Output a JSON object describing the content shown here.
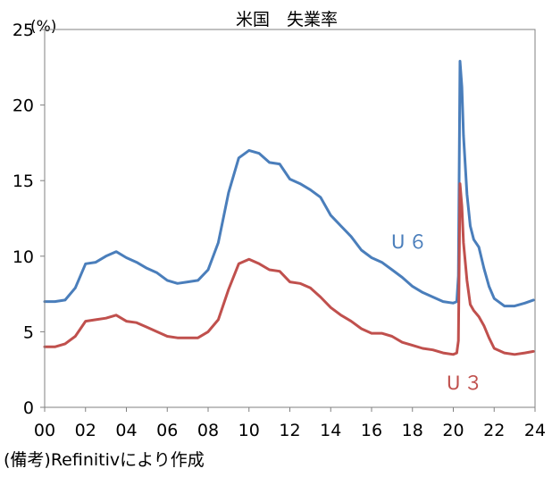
{
  "chart_data": {
    "type": "line",
    "title": "米国　失業率",
    "y_unit": "(%)",
    "source_note": "(備考)Refinitivにより作成",
    "xlim": [
      2000,
      2024
    ],
    "ylim": [
      0,
      25
    ],
    "x_ticks": [
      {
        "value": 2000,
        "label": "00"
      },
      {
        "value": 2002,
        "label": "02"
      },
      {
        "value": 2004,
        "label": "04"
      },
      {
        "value": 2006,
        "label": "06"
      },
      {
        "value": 2008,
        "label": "08"
      },
      {
        "value": 2010,
        "label": "10"
      },
      {
        "value": 2012,
        "label": "12"
      },
      {
        "value": 2014,
        "label": "14"
      },
      {
        "value": 2016,
        "label": "16"
      },
      {
        "value": 2018,
        "label": "18"
      },
      {
        "value": 2020,
        "label": "20"
      },
      {
        "value": 2022,
        "label": "22"
      },
      {
        "value": 2024,
        "label": "24"
      }
    ],
    "y_ticks": [
      0,
      5,
      10,
      15,
      20,
      25
    ],
    "grid": false,
    "series": [
      {
        "name": "U６",
        "color": "#4a7ebb",
        "x": [
          2000.0,
          2000.5,
          2001.0,
          2001.5,
          2002.0,
          2002.5,
          2003.0,
          2003.5,
          2004.0,
          2004.5,
          2005.0,
          2005.5,
          2006.0,
          2006.5,
          2007.0,
          2007.5,
          2008.0,
          2008.5,
          2009.0,
          2009.5,
          2010.0,
          2010.5,
          2011.0,
          2011.5,
          2012.0,
          2012.5,
          2013.0,
          2013.5,
          2014.0,
          2014.5,
          2015.0,
          2015.5,
          2016.0,
          2016.5,
          2017.0,
          2017.5,
          2018.0,
          2018.5,
          2019.0,
          2019.5,
          2020.0,
          2020.17,
          2020.25,
          2020.33,
          2020.42,
          2020.5,
          2020.67,
          2020.83,
          2021.0,
          2021.25,
          2021.5,
          2021.75,
          2022.0,
          2022.5,
          2023.0,
          2023.5,
          2023.92
        ],
        "y": [
          7.0,
          7.0,
          7.1,
          7.9,
          9.5,
          9.6,
          10.0,
          10.3,
          9.9,
          9.6,
          9.2,
          8.9,
          8.4,
          8.2,
          8.3,
          8.4,
          9.1,
          10.9,
          14.2,
          16.5,
          17.0,
          16.8,
          16.2,
          16.1,
          15.1,
          14.8,
          14.4,
          13.9,
          12.7,
          12.0,
          11.3,
          10.4,
          9.9,
          9.6,
          9.1,
          8.6,
          8.0,
          7.6,
          7.3,
          7.0,
          6.9,
          7.0,
          8.7,
          22.9,
          21.2,
          18.0,
          14.1,
          12.0,
          11.1,
          10.6,
          9.2,
          8.0,
          7.2,
          6.7,
          6.7,
          6.9,
          7.1
        ]
      },
      {
        "name": "U３",
        "color": "#c0504d",
        "x": [
          2000.0,
          2000.5,
          2001.0,
          2001.5,
          2002.0,
          2002.5,
          2003.0,
          2003.5,
          2004.0,
          2004.5,
          2005.0,
          2005.5,
          2006.0,
          2006.5,
          2007.0,
          2007.5,
          2008.0,
          2008.5,
          2009.0,
          2009.5,
          2010.0,
          2010.5,
          2011.0,
          2011.5,
          2012.0,
          2012.5,
          2013.0,
          2013.5,
          2014.0,
          2014.5,
          2015.0,
          2015.5,
          2016.0,
          2016.5,
          2017.0,
          2017.5,
          2018.0,
          2018.5,
          2019.0,
          2019.5,
          2020.0,
          2020.17,
          2020.25,
          2020.33,
          2020.42,
          2020.5,
          2020.67,
          2020.83,
          2021.0,
          2021.25,
          2021.5,
          2021.75,
          2022.0,
          2022.5,
          2023.0,
          2023.5,
          2023.92
        ],
        "y": [
          4.0,
          4.0,
          4.2,
          4.7,
          5.7,
          5.8,
          5.9,
          6.1,
          5.7,
          5.6,
          5.3,
          5.0,
          4.7,
          4.6,
          4.6,
          4.6,
          5.0,
          5.8,
          7.8,
          9.5,
          9.8,
          9.5,
          9.1,
          9.0,
          8.3,
          8.2,
          7.9,
          7.3,
          6.6,
          6.1,
          5.7,
          5.2,
          4.9,
          4.9,
          4.7,
          4.3,
          4.1,
          3.9,
          3.8,
          3.6,
          3.5,
          3.6,
          4.4,
          14.8,
          13.3,
          10.9,
          8.4,
          6.8,
          6.4,
          6.0,
          5.4,
          4.6,
          3.9,
          3.6,
          3.5,
          3.6,
          3.7
        ]
      }
    ]
  }
}
